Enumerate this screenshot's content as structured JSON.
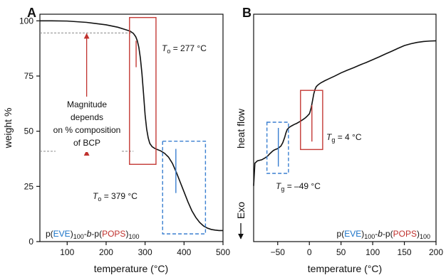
{
  "chart_data": [
    {
      "type": "line",
      "panel_label": "A",
      "xlabel": "temperature (°C)",
      "ylabel": "weight %",
      "xlim": [
        30,
        500
      ],
      "ylim": [
        0,
        103
      ],
      "x_ticks": [
        100,
        200,
        300,
        400,
        500
      ],
      "y_ticks": [
        0,
        25,
        50,
        75,
        100
      ],
      "series": [
        {
          "color": "#111111",
          "x": [
            30,
            60,
            100,
            150,
            200,
            230,
            250,
            262,
            270,
            276,
            280,
            284,
            288,
            292,
            296,
            300,
            304,
            308,
            312,
            318,
            324,
            330,
            340,
            350,
            360,
            370,
            380,
            390,
            400,
            410,
            420,
            430,
            440,
            450,
            460,
            470,
            480,
            490,
            500
          ],
          "y": [
            100.0,
            100.0,
            99.9,
            99.3,
            98.2,
            97.1,
            96.0,
            95.3,
            94.3,
            92.8,
            91.0,
            88.0,
            83.0,
            76.0,
            67.0,
            57.5,
            51.0,
            47.0,
            44.5,
            43.0,
            42.3,
            41.8,
            41.1,
            40.0,
            38.3,
            35.5,
            31.5,
            27.0,
            22.5,
            18.0,
            14.0,
            11.0,
            8.7,
            7.1,
            6.1,
            5.5,
            5.2,
            5.0,
            5.0
          ]
        }
      ],
      "annotations": {
        "magnitude_text": [
          "Magnitude",
          "depends",
          "on % composition",
          "of BCP"
        ],
        "red_box_label_prefix": "T",
        "red_box_label_sub": "o",
        "red_box_label_suffix": " = 277 °C",
        "blue_box_label_prefix": "T",
        "blue_box_label_sub": "o",
        "blue_box_label_suffix": " = 379 °C",
        "ref_levels": [
          94.5,
          40.9
        ],
        "red_box": {
          "x": [
            260,
            328
          ],
          "y": [
            35,
            101.5
          ],
          "marker_x": 277,
          "marker_y": [
            79,
            91
          ]
        },
        "blue_box": {
          "x": [
            345,
            455
          ],
          "y": [
            3.5,
            45.5
          ],
          "marker_x": 379,
          "marker_y": [
            22,
            42
          ]
        }
      },
      "title_parts": [
        "p(",
        "EVE",
        ")",
        "100",
        "-",
        "b",
        "-p(",
        "POPS",
        ")",
        "100"
      ]
    },
    {
      "type": "line",
      "panel_label": "B",
      "xlabel": "temperature (°C)",
      "ylabel": "heat flow",
      "ylabel_extra": "Exo",
      "xlim": [
        -88,
        200
      ],
      "ylim": [
        0,
        100
      ],
      "x_ticks": [
        -50,
        0,
        50,
        100,
        150,
        200
      ],
      "series": [
        {
          "color": "#111111",
          "x": [
            -88,
            -86,
            -82,
            -75,
            -70,
            -66,
            -63,
            -60,
            -58,
            -56,
            -53,
            -50,
            -45,
            -42,
            -39,
            -37,
            -35,
            -32,
            -28,
            -24,
            -20,
            -15,
            -10,
            -6,
            -3,
            0,
            1,
            3,
            5,
            7,
            9,
            11,
            14,
            18,
            24,
            30,
            40,
            50,
            60,
            70,
            80,
            90,
            100,
            110,
            120,
            130,
            140,
            150,
            160,
            170,
            180,
            190,
            200
          ],
          "y": [
            24.5,
            34.5,
            35.5,
            36.0,
            36.8,
            37.6,
            38.5,
            39.3,
            39.8,
            40.2,
            40.6,
            40.9,
            42.0,
            43.5,
            45.8,
            47.8,
            49.3,
            50.2,
            50.9,
            51.5,
            52.0,
            52.8,
            53.7,
            54.5,
            55.3,
            56.2,
            57.0,
            59.0,
            62.0,
            65.0,
            67.0,
            68.2,
            69.0,
            69.8,
            70.7,
            71.5,
            72.8,
            74.2,
            75.4,
            76.5,
            77.7,
            78.8,
            80.0,
            81.2,
            82.5,
            83.7,
            85.0,
            86.2,
            87.0,
            87.6,
            88.0,
            88.2,
            88.3
          ]
        }
      ],
      "annotations": {
        "red_box_label_prefix": "T",
        "red_box_label_sub": "g",
        "red_box_label_suffix": " = 4 °C",
        "blue_box_label_prefix": "T",
        "blue_box_label_sub": "g",
        "blue_box_label_suffix": " = –49 °C",
        "red_box": {
          "x": [
            -14,
            21
          ],
          "y": [
            40.5,
            66.5
          ],
          "marker_x": 4,
          "marker_y": [
            44,
            60
          ]
        },
        "blue_box": {
          "x": [
            -67,
            -33
          ],
          "y": [
            30,
            52.5
          ],
          "marker_x": -49,
          "marker_y": [
            33,
            50
          ]
        }
      },
      "title_parts": [
        "p(",
        "EVE",
        ")",
        "100",
        "-",
        "b",
        "-p(",
        "POPS",
        ")",
        "100"
      ]
    }
  ],
  "colors": {
    "eve_blue": "#1a73c8",
    "pops_red": "#c0322e",
    "box_red": "#c43a36",
    "box_blue": "#3a7fd0",
    "ref_gray": "#8a8a8a",
    "line_black": "#111111"
  }
}
